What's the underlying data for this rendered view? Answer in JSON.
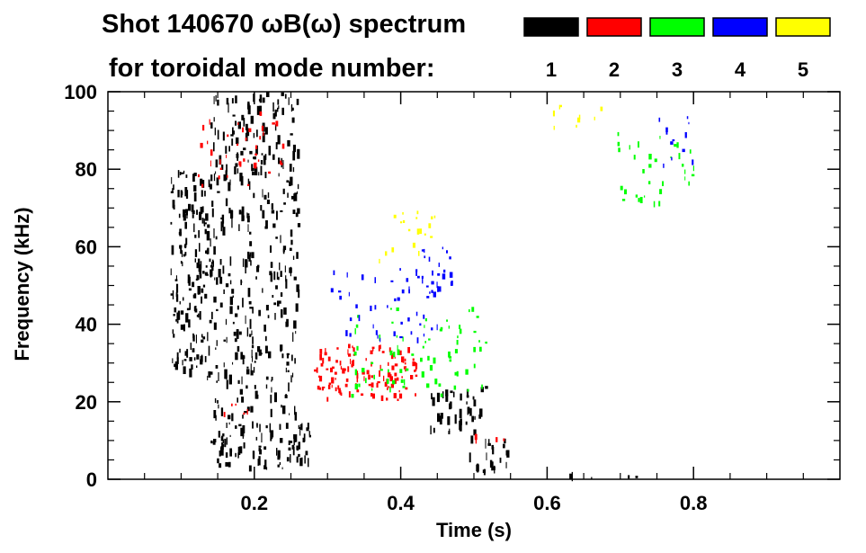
{
  "chart_data": {
    "type": "heatmap",
    "title_line1": "Shot 140670 ωB(ω) spectrum",
    "title_line2": "for toroidal mode number:",
    "xlabel": "Time (s)",
    "ylabel": "Frequency (kHz)",
    "xlim": [
      0.0,
      1.0
    ],
    "ylim": [
      0,
      100
    ],
    "x_ticks": [
      0.2,
      0.4,
      0.6,
      0.8
    ],
    "x_tick_labels": [
      "0.2",
      "0.4",
      "0.6",
      "0.8"
    ],
    "y_ticks": [
      0,
      20,
      40,
      60,
      80,
      100
    ],
    "y_tick_labels": [
      "0",
      "20",
      "40",
      "60",
      "80",
      "100"
    ],
    "grid": false,
    "legend_position": "top-right",
    "legend": [
      {
        "label": "1",
        "color": "#000000"
      },
      {
        "label": "2",
        "color": "#ff0000"
      },
      {
        "label": "3",
        "color": "#00ff00"
      },
      {
        "label": "4",
        "color": "#0000ff"
      },
      {
        "label": "5",
        "color": "#ffff00"
      }
    ],
    "series": [
      {
        "mode": 1,
        "color": "#000000",
        "regions": [
          {
            "t": [
              0.085,
              0.14
            ],
            "f": [
              25,
              80
            ],
            "density": "high"
          },
          {
            "t": [
              0.14,
              0.26
            ],
            "f": [
              15,
              100
            ],
            "density": "medium"
          },
          {
            "t": [
              0.14,
              0.275
            ],
            "f": [
              2,
              15
            ],
            "density": "high"
          },
          {
            "t": [
              0.44,
              0.52
            ],
            "f": [
              10,
              25
            ],
            "density": "medium"
          },
          {
            "t": [
              0.49,
              0.545
            ],
            "f": [
              0,
              12
            ],
            "density": "medium"
          },
          {
            "t": [
              0.6,
              0.75
            ],
            "f": [
              0,
              2
            ],
            "density": "low"
          }
        ]
      },
      {
        "mode": 2,
        "color": "#ff0000",
        "regions": [
          {
            "t": [
              0.28,
              0.42
            ],
            "f": [
              20,
              35
            ],
            "density": "high"
          },
          {
            "t": [
              0.12,
              0.24
            ],
            "f": [
              75,
              95
            ],
            "density": "low"
          },
          {
            "t": [
              0.15,
              0.2
            ],
            "f": [
              14,
              20
            ],
            "density": "low"
          },
          {
            "t": [
              0.5,
              0.54
            ],
            "f": [
              5,
              12
            ],
            "density": "low"
          }
        ]
      },
      {
        "mode": 3,
        "color": "#00ff00",
        "regions": [
          {
            "t": [
              0.33,
              0.52
            ],
            "f": [
              20,
              45
            ],
            "density": "low"
          },
          {
            "t": [
              0.69,
              0.8
            ],
            "f": [
              70,
              90
            ],
            "density": "low"
          }
        ]
      },
      {
        "mode": 4,
        "color": "#0000ff",
        "regions": [
          {
            "t": [
              0.42,
              0.47
            ],
            "f": [
              48,
              60
            ],
            "density": "medium"
          },
          {
            "t": [
              0.3,
              0.45
            ],
            "f": [
              35,
              55
            ],
            "density": "low"
          },
          {
            "t": [
              0.75,
              0.8
            ],
            "f": [
              80,
              95
            ],
            "density": "low"
          }
        ]
      },
      {
        "mode": 5,
        "color": "#ffff00",
        "regions": [
          {
            "t": [
              0.37,
              0.45
            ],
            "f": [
              55,
              70
            ],
            "density": "low"
          },
          {
            "t": [
              0.6,
              0.68
            ],
            "f": [
              90,
              97
            ],
            "density": "low"
          }
        ]
      }
    ]
  }
}
